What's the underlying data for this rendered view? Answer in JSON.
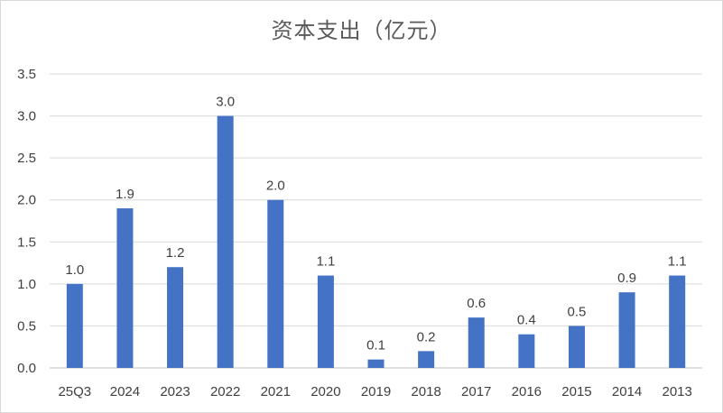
{
  "chart_data": {
    "type": "bar",
    "title": "资本支出（亿元）",
    "categories": [
      "25Q3",
      "2024",
      "2023",
      "2022",
      "2021",
      "2020",
      "2019",
      "2018",
      "2017",
      "2016",
      "2015",
      "2014",
      "2013"
    ],
    "values": [
      1.0,
      1.9,
      1.2,
      3.0,
      2.0,
      1.1,
      0.1,
      0.2,
      0.6,
      0.4,
      0.5,
      0.9,
      1.1
    ],
    "data_labels": [
      "1.0",
      "1.9",
      "1.2",
      "3.0",
      "2.0",
      "1.1",
      "0.1",
      "0.2",
      "0.6",
      "0.4",
      "0.5",
      "0.9",
      "1.1"
    ],
    "y_ticks": [
      "0.0",
      "0.5",
      "1.0",
      "1.5",
      "2.0",
      "2.5",
      "3.0",
      "3.5"
    ],
    "ylim": [
      0,
      3.5
    ],
    "xlabel": "",
    "ylabel": "",
    "grid": true,
    "legend": "none",
    "bar_color": "#4472c4",
    "grid_color": "#d9d9d9"
  }
}
